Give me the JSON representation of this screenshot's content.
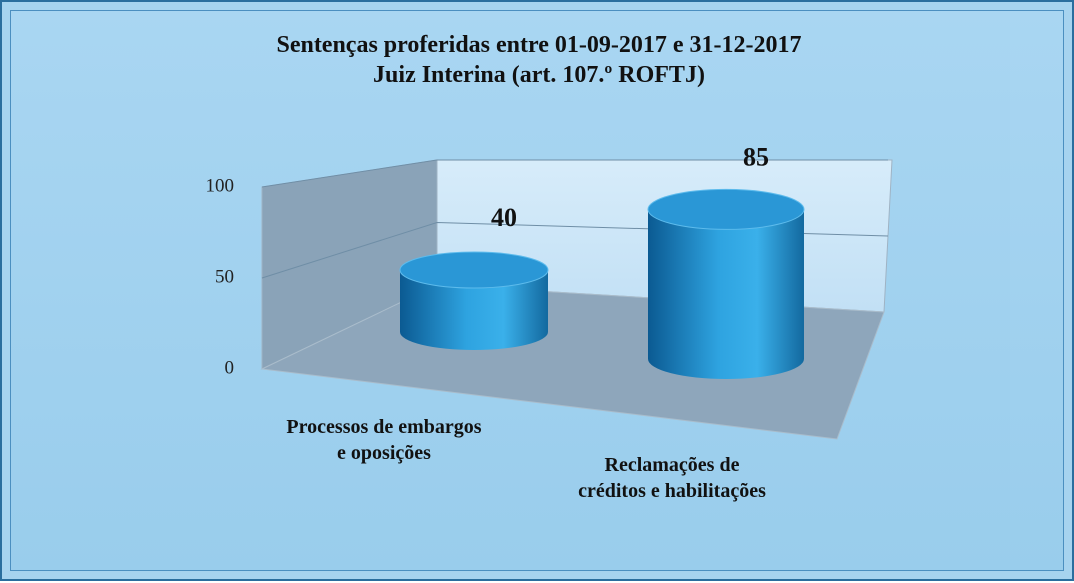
{
  "chart_data": {
    "type": "bar3d",
    "title": "Sentenças proferidas entre 01-09-2017 e 31-12-2017",
    "subtitle": "Juiz Interina (art. 107.º ROFTJ)",
    "categories": [
      "Processos de embargos\ne oposições",
      "Reclamações de\ncréditos e habilitações"
    ],
    "values": [
      40,
      85
    ],
    "color": "#1f86c8",
    "ylim": [
      0,
      100
    ],
    "yticks": [
      0,
      50,
      100
    ],
    "grid": true
  }
}
